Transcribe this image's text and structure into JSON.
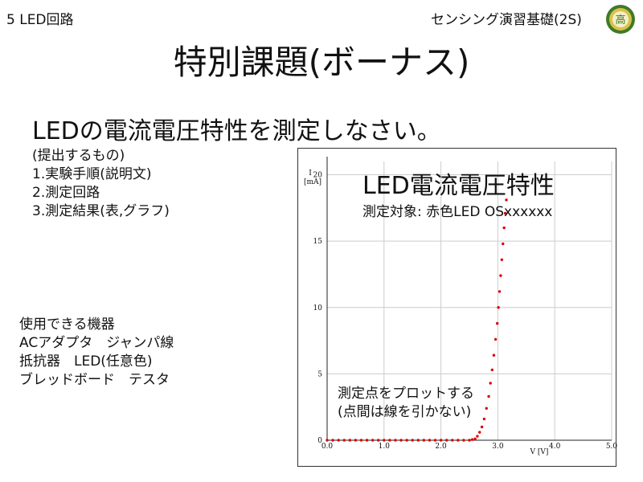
{
  "header": {
    "left_text": "5 LED回路",
    "right_text": "センシング演習基礎(2S)",
    "logo_text": "高"
  },
  "slide": {
    "title": "特別課題(ボーナス)",
    "subtitle": "LEDの電流電圧特性を測定しなさい。"
  },
  "submission": {
    "heading": "(提出するもの)",
    "items": [
      "1.実験手順(説明文)",
      "2.測定回路",
      "3.測定結果(表,グラフ)"
    ]
  },
  "equipment": {
    "heading": "使用できる機器",
    "lines": [
      "ACアダプタ　ジャンパ線",
      "抵抗器　LED(任意色)",
      "ブレッドボード　テスタ"
    ]
  },
  "colors": {
    "series": "#dd0000",
    "grid": "#cccccc",
    "axis": "#222222"
  },
  "chart_data": {
    "type": "scatter",
    "title": "LED電流電圧特性",
    "subtitle": "測定対象: 赤色LED OSxxxxxx",
    "annotation": [
      "測定点をプロットする",
      "(点間は線を引かない)"
    ],
    "xlabel": "V [V]",
    "ylabel": [
      "I",
      "[mA]"
    ],
    "xlim": [
      0,
      5
    ],
    "ylim": [
      0,
      21
    ],
    "xticks": [
      "0.0",
      "1.0",
      "2.0",
      "3.0",
      "4.0",
      "5.0"
    ],
    "yticks": [
      "0",
      "5",
      "10",
      "15",
      "20"
    ],
    "grid": true,
    "series": [
      {
        "color": "#dd0000",
        "points": [
          [
            0.0,
            0
          ],
          [
            0.1,
            0
          ],
          [
            0.2,
            0
          ],
          [
            0.3,
            0
          ],
          [
            0.4,
            0
          ],
          [
            0.5,
            0
          ],
          [
            0.6,
            0
          ],
          [
            0.7,
            0
          ],
          [
            0.8,
            0
          ],
          [
            0.9,
            0
          ],
          [
            1.0,
            0
          ],
          [
            1.1,
            0
          ],
          [
            1.2,
            0
          ],
          [
            1.3,
            0
          ],
          [
            1.4,
            0
          ],
          [
            1.5,
            0
          ],
          [
            1.6,
            0
          ],
          [
            1.7,
            0
          ],
          [
            1.8,
            0
          ],
          [
            1.9,
            0
          ],
          [
            2.0,
            0
          ],
          [
            2.1,
            0
          ],
          [
            2.2,
            0
          ],
          [
            2.3,
            0
          ],
          [
            2.4,
            0
          ],
          [
            2.5,
            0
          ],
          [
            2.55,
            0.05
          ],
          [
            2.6,
            0.1
          ],
          [
            2.64,
            0.3
          ],
          [
            2.68,
            0.6
          ],
          [
            2.72,
            1.0
          ],
          [
            2.76,
            1.6
          ],
          [
            2.8,
            2.4
          ],
          [
            2.84,
            3.3
          ],
          [
            2.87,
            4.3
          ],
          [
            2.9,
            5.3
          ],
          [
            2.93,
            6.4
          ],
          [
            2.96,
            7.6
          ],
          [
            2.99,
            8.8
          ],
          [
            3.01,
            10.0
          ],
          [
            3.03,
            11.2
          ],
          [
            3.05,
            12.4
          ],
          [
            3.07,
            13.6
          ],
          [
            3.09,
            14.8
          ],
          [
            3.11,
            16.0
          ],
          [
            3.13,
            17.1
          ],
          [
            3.15,
            18.1
          ]
        ]
      }
    ]
  }
}
